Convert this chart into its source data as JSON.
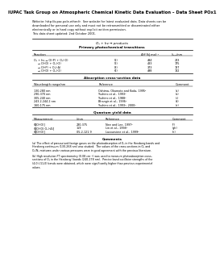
{
  "title_bold": "IUPAC Task Group on Atmospheric Chemical Kinetic Data Evaluation – Data Sheet POx1",
  "website_line": "Website: http://iupac.pole-ether.fr.  See website for latest evaluated data. Data sheets can be\ndownloaded for personal use only and must not be retransmitted or disseminated either\nelectronically or in hard copy without explicit written permission.\nThis data sheet updated: 2nd October 2001.",
  "reaction_title": "O₃ + hν → products",
  "section1_title": "Primary photochemical transitions",
  "table1_headers": [
    "Reaction",
    "",
    "ΔH°/kJ mol⁻¹",
    "λₘₐₓ/nm"
  ],
  "table1_rows": [
    [
      "O₃ + hν → O(³P) + O₂(³Σ)",
      "(1)",
      "494",
      "243"
    ],
    [
      "→ O(¹D) + O₂(³Σ)",
      "(2)",
      "483",
      "175"
    ],
    [
      "→ O(³P) + O₂(¹Δ)",
      "(3)",
      "373",
      "137"
    ],
    [
      "→ O(¹D) + O₂(¹Σ)",
      "(4)",
      "498",
      "132"
    ]
  ],
  "section2_title": "Absorption cross-section data",
  "table2_headers": [
    "Wavelength range/nm",
    "Reference",
    "Comment"
  ],
  "table2_rows": [
    [
      "130-280 nm",
      "Oshima, Okamoto and Koda, 1995²",
      "(a)"
    ],
    [
      "290-370 nm",
      "Yoshino et al., 1993²",
      "(b)"
    ],
    [
      "305-240 nm",
      "Yoshino et al., 1988²",
      "(c)"
    ],
    [
      "243.2-244.2 nm",
      "Bhangir et al., 1996²",
      "(d)"
    ],
    [
      "160-175 nm",
      "Yoshino et al., 1993², 2000²",
      "(e)"
    ]
  ],
  "section3_title": "Quantum yield data",
  "table3_headers": [
    "Measurement",
    "λ/nm",
    "Reference",
    "Comment"
  ],
  "table3_rows": [
    [
      "Φ[O(¹D)]",
      "230-375",
      "Nee and Lee, 1997²",
      "(f)"
    ],
    [
      "Φ[O(¹D):O₂(¹Δ)]",
      "159",
      "Lin et al., 1998²",
      "(gh)"
    ],
    [
      "Φ[O(¹D)]",
      "0.5-2-121.9",
      "Lacoursiere et al., 1999²",
      "(h)"
    ]
  ],
  "section4_title": "Comments",
  "comment_a": "(a) The effect of pressurised foreign gases on the photoabsorption of O₃ in the Herzberg bands and\nHerzberg continuum (130-268 nm) was studied.  The values of the cross-sections in O₂ and\nO₂/N₂ mixtures under various pressures were in good agreement with the previous literature.",
  "comment_b": "(b) High resolution FT spectrometry (0.08 cm⁻¹) was used to measure photoabsorption cross-\nsections of O₃ in the Herzberg I bands (240-278 nm).  Precise band oscillator strengths of the\n(4,0)-(11,0) bands were obtained, which were significantly higher than previous experimental\nvalues.",
  "bg_color": "#ffffff",
  "text_color": "#000000",
  "line_color": "#000000",
  "fs_title": 3.8,
  "fs_body": 2.5,
  "fs_section": 3.0,
  "fs_table": 2.4,
  "fs_header": 2.5,
  "fs_comment": 2.3,
  "line_step": 0.017,
  "section_step": 0.016,
  "title_step": 0.03
}
